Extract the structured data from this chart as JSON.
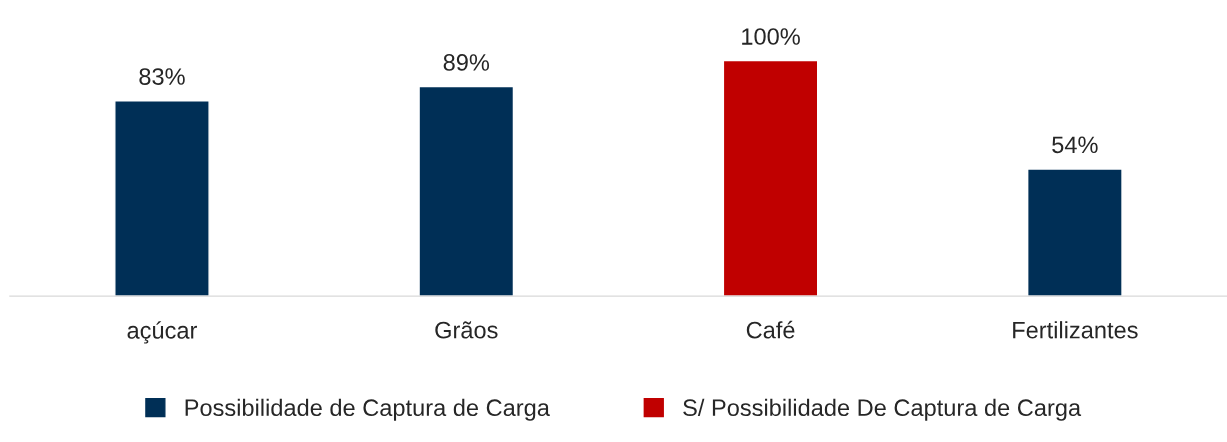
{
  "chart_data": {
    "type": "bar",
    "categories": [
      "açúcar",
      "Grãos",
      "Café",
      "Fertilizantes"
    ],
    "series": [
      {
        "name": "Possibilidade de Captura de Carga",
        "color": "#002f56",
        "values": [
          83,
          89,
          null,
          54
        ],
        "value_labels": [
          "83%",
          "89%",
          null,
          "54%"
        ]
      },
      {
        "name": "S/ Possibilidade De Captura de Carga",
        "color": "#c00000",
        "values": [
          null,
          null,
          100,
          null
        ],
        "value_labels": [
          null,
          null,
          "100%",
          null
        ]
      }
    ],
    "legend": "bottom",
    "grid": false
  }
}
